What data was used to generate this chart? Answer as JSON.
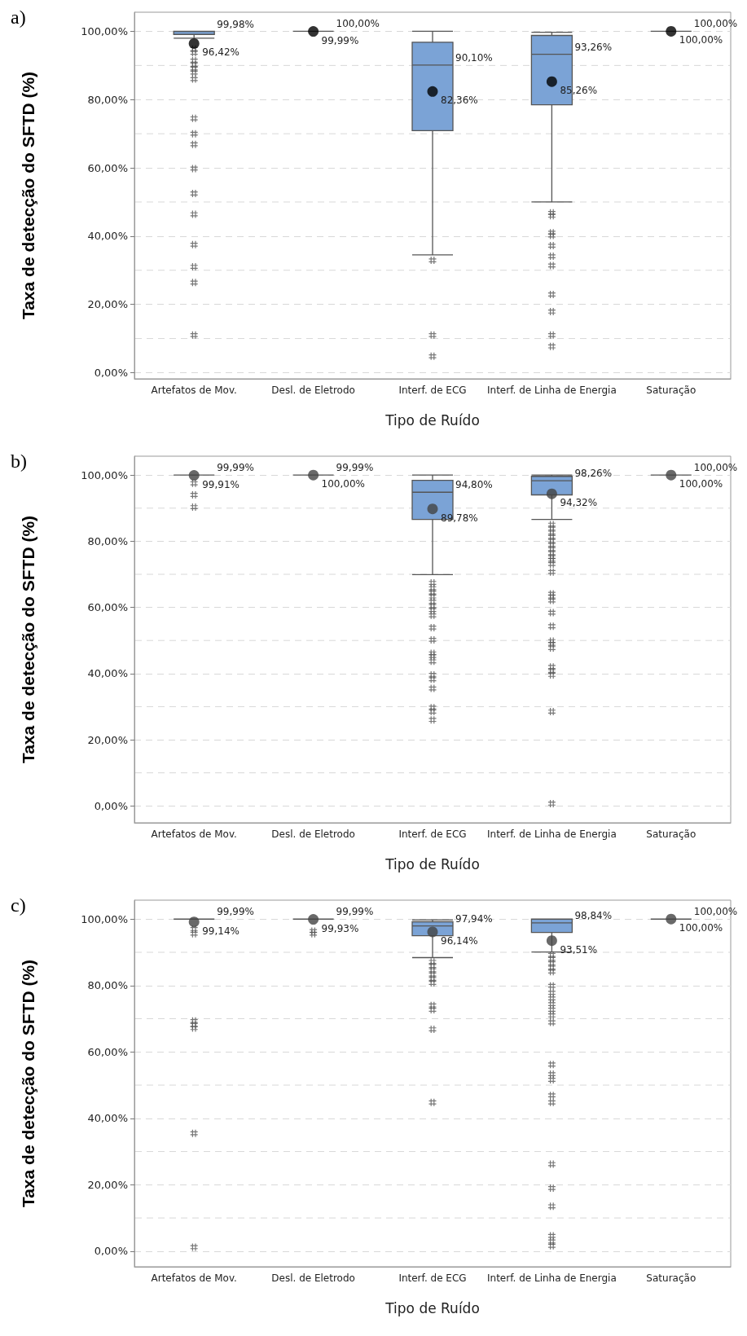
{
  "chart_data": [
    {
      "type": "box",
      "title": "a)",
      "xlabel": "Tipo de Ruído",
      "ylabel": "Taxa de detecção do SFTD (%)",
      "categories": [
        "Artefatos de Mov.",
        "Desl. de Eletrodo",
        "Interf. de ECG",
        "Interf. de Linha de Energia",
        "Saturação"
      ],
      "colors": [
        "#7ba3d6",
        "#555555",
        "#7ba3d6",
        "#7ba3d6",
        "#555555"
      ],
      "ylim": [
        -1.8,
        105.6
      ],
      "yticks": [
        {
          "value": 0,
          "label": "0,00%"
        },
        {
          "value": 10,
          "label": null
        },
        {
          "value": 20,
          "label": "20,00%"
        },
        {
          "value": 30,
          "label": null
        },
        {
          "value": 40,
          "label": "40,00%"
        },
        {
          "value": 50,
          "label": null
        },
        {
          "value": 60,
          "label": "60,00%"
        },
        {
          "value": 70,
          "label": null
        },
        {
          "value": 80,
          "label": "80,00%"
        },
        {
          "value": 90,
          "label": null
        },
        {
          "value": 100,
          "label": "100,00%"
        }
      ],
      "grid": "y",
      "marker": "circle",
      "boxes": [
        {
          "low": 98,
          "q1": 99.1,
          "median": 99.98,
          "q3": 100,
          "high": 100,
          "outliers": [
            94.8,
            93.7,
            91.4,
            90.2,
            89.1,
            87.9,
            86.0,
            74.5,
            70.0,
            66.9,
            59.8,
            52.5,
            46.4,
            37.5,
            31.0,
            26.4,
            11.0
          ]
        },
        {
          "low": 100,
          "q1": 100,
          "median": 100,
          "q3": 100,
          "high": 100
        },
        {
          "low": 34.5,
          "q1": 70.9,
          "median": 90.1,
          "q3": 96.8,
          "high": 100,
          "outliers": [
            32.9,
            11.0,
            4.8
          ]
        },
        {
          "low": 50.0,
          "q1": 78.5,
          "median": 93.26,
          "q3": 98.8,
          "high": 99.7,
          "outliers": [
            46.8,
            46.0,
            41.0,
            40.2,
            37.2,
            34.1,
            31.4,
            22.9,
            17.9,
            11.0,
            7.7
          ]
        },
        {
          "low": 100,
          "q1": 100,
          "median": 100,
          "q3": 100,
          "high": 100
        }
      ],
      "series": [
        {
          "type": "scatter",
          "color": "#000000",
          "x": [
            "Artefatos de Mov.",
            "Desl. de Eletrodo",
            "Interf. de ECG",
            "Interf. de Linha de Energia",
            "Saturação"
          ],
          "values": [
            96.42,
            99.99,
            82.36,
            85.26,
            100
          ]
        }
      ],
      "annotations": [
        {
          "text": "99,98%",
          "x": "Artefatos de Mov.",
          "y": 99.98
        },
        {
          "text": "96,42%",
          "x": "Artefatos de Mov.",
          "y": 96.42
        },
        {
          "text": "100,00%",
          "x": "Desl. de Eletrodo",
          "y": 100
        },
        {
          "text": "99,99%",
          "x": "Desl. de Eletrodo",
          "y": 99.99
        },
        {
          "text": "90,10%",
          "x": "Interf. de ECG",
          "y": 90.1
        },
        {
          "text": "82,36%",
          "x": "Interf. de ECG",
          "y": 82.36
        },
        {
          "text": "93,26%",
          "x": "Interf. de Linha de Energia",
          "y": 93.26
        },
        {
          "text": "85,26%",
          "x": "Interf. de Linha de Energia",
          "y": 85.26
        },
        {
          "text": "100,00%",
          "x": "Saturação",
          "y": 100
        },
        {
          "text": "100,00%",
          "x": "Saturação",
          "y": 100
        }
      ]
    },
    {
      "type": "box",
      "title": "b)",
      "xlabel": "Tipo de Ruído",
      "ylabel": "Taxa de detecção do SFTD (%)",
      "categories": [
        "Artefatos de Mov.",
        "Desl. de Eletrodo",
        "Interf. de ECG",
        "Interf. de Linha de Energia",
        "Saturação"
      ],
      "colors": [
        "#555555",
        "#555555",
        "#7ba3d6",
        "#7ba3d6",
        "#555555"
      ],
      "ylim": [
        -5.1,
        105.7
      ],
      "yticks": [
        {
          "value": 0,
          "label": "0,00%"
        },
        {
          "value": 10,
          "label": null
        },
        {
          "value": 20,
          "label": "20,00%"
        },
        {
          "value": 30,
          "label": null
        },
        {
          "value": 40,
          "label": "40,00%"
        },
        {
          "value": 50,
          "label": null
        },
        {
          "value": 60,
          "label": "60,00%"
        },
        {
          "value": 70,
          "label": null
        },
        {
          "value": 80,
          "label": "80,00%"
        },
        {
          "value": 90,
          "label": null
        },
        {
          "value": 100,
          "label": "100,00%"
        }
      ],
      "grid": "y",
      "marker": "circle",
      "boxes": [
        {
          "low": 100,
          "q1": 100,
          "median": 99.99,
          "q3": 100,
          "high": 100,
          "outliers": [
            97.5,
            94.0,
            90.3
          ]
        },
        {
          "low": 100,
          "q1": 100,
          "median": 99.99,
          "q3": 100,
          "high": 100
        },
        {
          "low": 69.9,
          "q1": 86.6,
          "median": 94.8,
          "q3": 98.4,
          "high": 100,
          "outliers": [
            67.4,
            65.8,
            64.5,
            63.3,
            61.7,
            60.4,
            59.2,
            57.6,
            53.9,
            50.2,
            46.1,
            45.3,
            43.7,
            39.6,
            38.3,
            35.5,
            29.7,
            28.5,
            26.0
          ]
        },
        {
          "low": 86.6,
          "q1": 94.0,
          "median": 98.26,
          "q3": 99.6,
          "high": 100,
          "outliers": [
            85.0,
            83.8,
            82.6,
            81.3,
            80.1,
            78.9,
            77.6,
            76.4,
            75.2,
            74.4,
            73.1,
            70.7,
            64.1,
            63.3,
            62.1,
            58.4,
            54.3,
            49.8,
            49.0,
            47.7,
            42.0,
            40.8,
            39.6,
            28.5,
            0.7
          ]
        },
        {
          "low": 100,
          "q1": 100,
          "median": 100,
          "q3": 100,
          "high": 100
        }
      ],
      "series": [
        {
          "type": "scatter",
          "color": "#444444",
          "x": [
            "Artefatos de Mov.",
            "Desl. de Eletrodo",
            "Interf. de ECG",
            "Interf. de Linha de Energia",
            "Saturação"
          ],
          "values": [
            99.91,
            100,
            89.78,
            94.32,
            100
          ]
        }
      ],
      "annotations": [
        {
          "text": "99,99%",
          "x": "Artefatos de Mov.",
          "y": 99.99
        },
        {
          "text": "99,91%",
          "x": "Artefatos de Mov.",
          "y": 99.91
        },
        {
          "text": "99,99%",
          "x": "Desl. de Eletrodo",
          "y": 99.99
        },
        {
          "text": "100,00%",
          "x": "Desl. de Eletrodo",
          "y": 100
        },
        {
          "text": "94,80%",
          "x": "Interf. de ECG",
          "y": 94.8
        },
        {
          "text": "89,78%",
          "x": "Interf. de ECG",
          "y": 89.78
        },
        {
          "text": "98,26%",
          "x": "Interf. de Linha de Energia",
          "y": 98.26
        },
        {
          "text": "94,32%",
          "x": "Interf. de Linha de Energia",
          "y": 94.32
        },
        {
          "text": "100,00%",
          "x": "Saturação",
          "y": 100
        },
        {
          "text": "100,00%",
          "x": "Saturação",
          "y": 100
        }
      ]
    },
    {
      "type": "box",
      "title": "c)",
      "xlabel": "Tipo de Ruído",
      "ylabel": "Taxa de detecção do SFTD (%)",
      "categories": [
        "Artefatos de Mov.",
        "Desl. de Eletrodo",
        "Interf. de ECG",
        "Interf. de Linha de Energia",
        "Saturação"
      ],
      "colors": [
        "#555555",
        "#555555",
        "#7ba3d6",
        "#7ba3d6",
        "#555555"
      ],
      "ylim": [
        -4.7,
        105.7
      ],
      "yticks": [
        {
          "value": 0,
          "label": "0,00%"
        },
        {
          "value": 10,
          "label": null
        },
        {
          "value": 20,
          "label": "20,00%"
        },
        {
          "value": 30,
          "label": null
        },
        {
          "value": 40,
          "label": "40,00%"
        },
        {
          "value": 50,
          "label": null
        },
        {
          "value": 60,
          "label": "60,00%"
        },
        {
          "value": 70,
          "label": null
        },
        {
          "value": 80,
          "label": "80,00%"
        },
        {
          "value": 90,
          "label": null
        },
        {
          "value": 100,
          "label": "100,00%"
        }
      ],
      "grid": "y",
      "marker": "circle",
      "boxes": [
        {
          "low": 100,
          "q1": 100,
          "median": 99.99,
          "q3": 100,
          "high": 100,
          "outliers": [
            97.0,
            95.6,
            69.3,
            68.1,
            67.2,
            35.5,
            1.2
          ]
        },
        {
          "low": 100,
          "q1": 100,
          "median": 99.99,
          "q3": 100,
          "high": 100,
          "outliers": [
            96.4,
            95.6
          ]
        },
        {
          "low": 88.4,
          "q1": 95.0,
          "median": 97.94,
          "q3": 99.2,
          "high": 99.8,
          "outliers": [
            87.1,
            85.9,
            84.6,
            83.3,
            82.0,
            80.8,
            74.0,
            72.7,
            66.8,
            44.8
          ]
        },
        {
          "low": 90.1,
          "q1": 96.0,
          "median": 98.84,
          "q3": 100,
          "high": 100,
          "outliers": [
            89.2,
            88.0,
            86.7,
            85.4,
            84.2,
            79.9,
            77.8,
            76.1,
            74.4,
            72.7,
            71.0,
            68.9,
            56.2,
            53.3,
            51.6,
            46.9,
            44.8,
            26.2,
            19.0,
            13.5,
            4.6,
            2.9,
            1.6
          ]
        },
        {
          "low": 100,
          "q1": 100,
          "median": 100,
          "q3": 100,
          "high": 100
        }
      ],
      "series": [
        {
          "type": "scatter",
          "color": "#444444",
          "x": [
            "Artefatos de Mov.",
            "Desl. de Eletrodo",
            "Interf. de ECG",
            "Interf. de Linha de Energia",
            "Saturação"
          ],
          "values": [
            99.14,
            99.93,
            96.14,
            93.51,
            100
          ]
        }
      ],
      "annotations": [
        {
          "text": "99,99%",
          "x": "Artefatos de Mov.",
          "y": 99.99
        },
        {
          "text": "99,14%",
          "x": "Artefatos de Mov.",
          "y": 99.14
        },
        {
          "text": "99,99%",
          "x": "Desl. de Eletrodo",
          "y": 99.99
        },
        {
          "text": "99,93%",
          "x": "Desl. de Eletrodo",
          "y": 99.93
        },
        {
          "text": "97,94%",
          "x": "Interf. de ECG",
          "y": 97.94
        },
        {
          "text": "96,14%",
          "x": "Interf. de ECG",
          "y": 96.14
        },
        {
          "text": "98,84%",
          "x": "Interf. de Linha de Energia",
          "y": 98.84
        },
        {
          "text": "93,51%",
          "x": "Interf. de Linha de Energia",
          "y": 93.51
        },
        {
          "text": "100,00%",
          "x": "Saturação",
          "y": 100
        },
        {
          "text": "100,00%",
          "x": "Saturação",
          "y": 100
        }
      ]
    }
  ]
}
